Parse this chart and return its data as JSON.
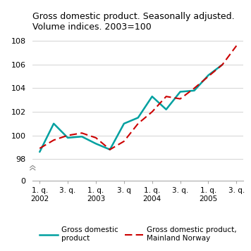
{
  "title": "Gross domestic product. Seasonally adjusted.\nVolume indices. 2003=100",
  "x_labels": [
    "1. q.\n2002",
    "3. q.",
    "1. q.\n2003",
    "3. q",
    "1. q.\n2004",
    "3. q.",
    "1. q.\n2005",
    "3. q."
  ],
  "x_tick_positions": [
    0,
    2,
    4,
    6,
    8,
    10,
    12,
    14
  ],
  "gdp": [
    98.6,
    101.0,
    99.8,
    99.9,
    99.3,
    98.8,
    101.0,
    101.5,
    103.3,
    102.2,
    103.7,
    103.8,
    105.1,
    106.0
  ],
  "mainland": [
    98.9,
    99.6,
    100.0,
    100.2,
    99.8,
    98.8,
    99.5,
    101.0,
    102.0,
    103.3,
    103.1,
    104.0,
    105.0,
    106.0,
    107.6
  ],
  "gdp_x": [
    0,
    1,
    2,
    3,
    4,
    5,
    6,
    7,
    8,
    9,
    10,
    11,
    12,
    13
  ],
  "mainland_x": [
    0,
    1,
    2,
    3,
    4,
    5,
    6,
    7,
    8,
    9,
    10,
    11,
    12,
    13,
    14
  ],
  "gdp_color": "#00a0a0",
  "mainland_color": "#cc0000",
  "background_color": "#ffffff",
  "grid_color": "#cccccc",
  "legend_gdp": "Gross domestic\nproduct",
  "legend_mainland": "Gross domestic product,\nMainland Norway",
  "data_ylim": [
    97.5,
    108.5
  ],
  "data_yticks": [
    98,
    100,
    102,
    104,
    106,
    108
  ],
  "xlim": [
    -0.5,
    14.5
  ]
}
